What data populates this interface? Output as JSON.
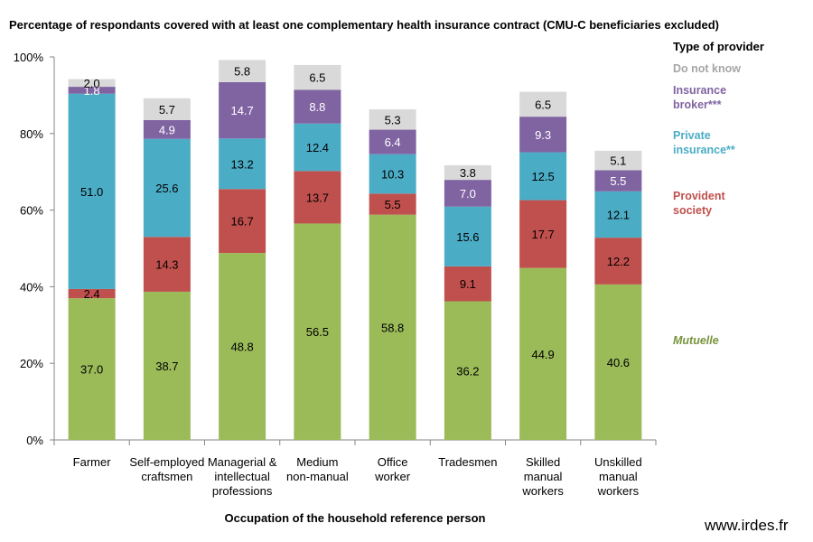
{
  "title": "Percentage of respondants covered with at least one complementary health insurance contract (CMU-C beneficiaries excluded)",
  "legend_title": "Type of provider",
  "xaxis_title": "Occupation of the household reference person",
  "watermark": "www.irdes.fr",
  "colors": {
    "mutuelle": "#9BBB59",
    "provident": "#C0504D",
    "private": "#4BACC6",
    "broker": "#8064A2",
    "unknown": "#D9D9D9"
  },
  "chart_data": {
    "type": "bar",
    "stacked": true,
    "categories": [
      "Farmer",
      "Self-employed craftsmen",
      "Managerial & intellectual professions",
      "Medium non-manual",
      "Office worker",
      "Tradesmen",
      "Skilled manual workers",
      "Unskilled manual workers"
    ],
    "category_lines": [
      [
        "Farmer"
      ],
      [
        "Self-employed",
        "craftsmen"
      ],
      [
        "Managerial &",
        "intellectual",
        "professions"
      ],
      [
        "Medium",
        "non-manual"
      ],
      [
        "Office",
        "worker"
      ],
      [
        "Tradesmen"
      ],
      [
        "Skilled",
        "manual",
        "workers"
      ],
      [
        "Unskilled",
        "manual",
        "workers"
      ]
    ],
    "series": [
      {
        "name": "Mutuelle",
        "legend_lines": [
          "Mutuelle"
        ],
        "color": "#9BBB59",
        "legend_color": "#77933C",
        "italic": true,
        "label_color": "#000000",
        "values": [
          37.0,
          38.7,
          48.8,
          56.5,
          58.8,
          36.2,
          44.9,
          40.6
        ]
      },
      {
        "name": "Provident society",
        "legend_lines": [
          "Provident",
          "society"
        ],
        "color": "#C0504D",
        "legend_color": "#C0504D",
        "label_color": "#000000",
        "values": [
          2.4,
          14.3,
          16.7,
          13.7,
          5.5,
          9.1,
          17.7,
          12.2
        ]
      },
      {
        "name": "Private insurance**",
        "legend_lines": [
          "Private",
          "insurance**"
        ],
        "color": "#4BACC6",
        "legend_color": "#4BACC6",
        "label_color": "#000000",
        "values": [
          51.0,
          25.6,
          13.2,
          12.4,
          10.3,
          15.6,
          12.5,
          12.1
        ]
      },
      {
        "name": "Insurance broker***",
        "legend_lines": [
          "Insurance",
          "broker***"
        ],
        "color": "#8064A2",
        "legend_color": "#8064A2",
        "label_color": "#FFFFFF",
        "values": [
          1.8,
          4.9,
          14.7,
          8.8,
          6.4,
          7.0,
          9.3,
          5.5
        ]
      },
      {
        "name": "Do not know",
        "legend_lines": [
          "Do not know"
        ],
        "color": "#D9D9D9",
        "legend_color": "#A6A6A6",
        "label_color": "#000000",
        "values": [
          2.0,
          5.7,
          5.8,
          6.5,
          5.3,
          3.8,
          6.5,
          5.1
        ]
      }
    ],
    "y_tick_labels": [
      "0%",
      "20%",
      "40%",
      "60%",
      "80%",
      "100%"
    ],
    "ylim": [
      0,
      100
    ],
    "grid": false,
    "legend_position": "right"
  }
}
